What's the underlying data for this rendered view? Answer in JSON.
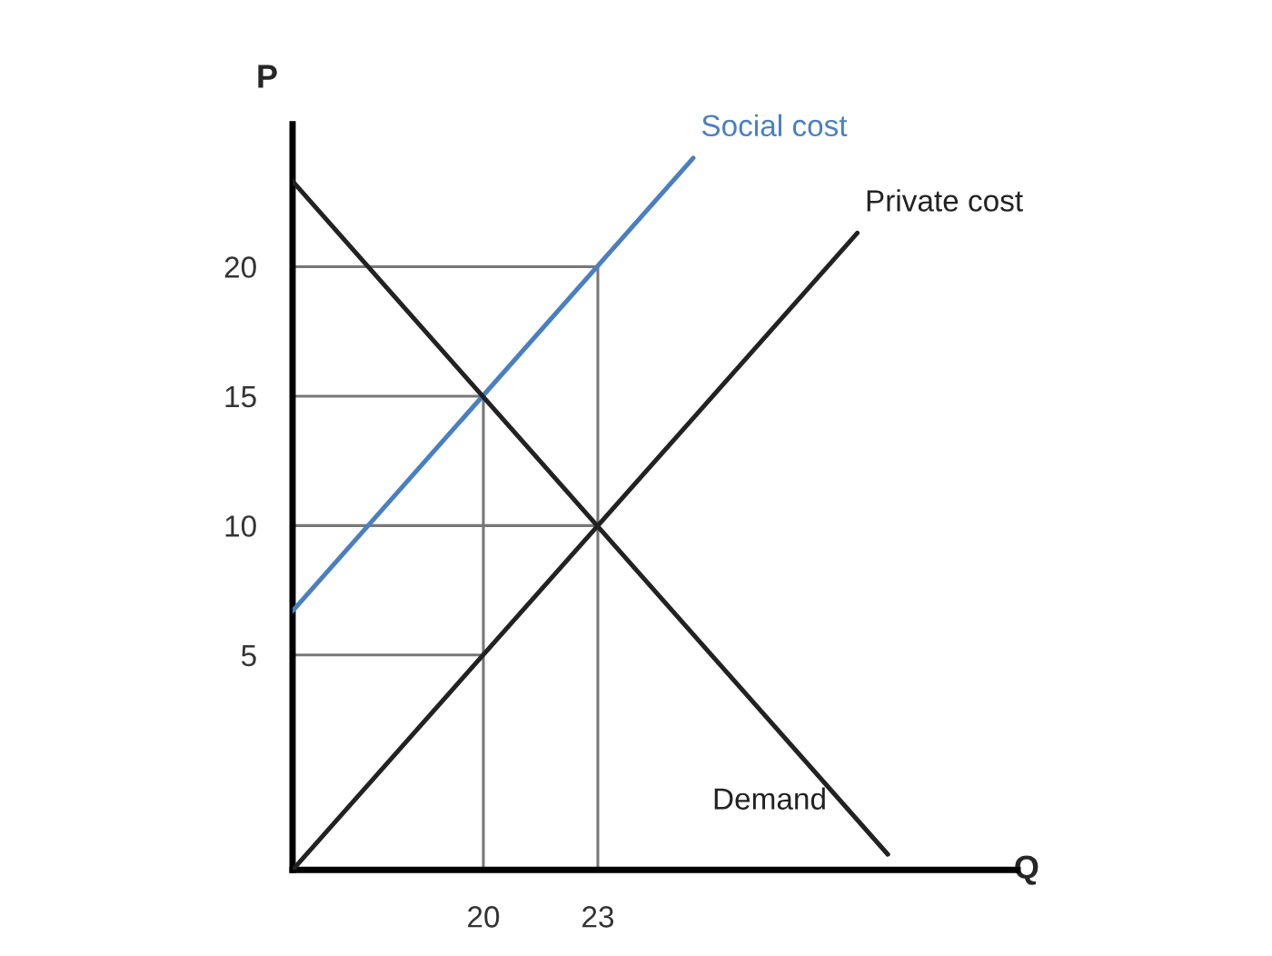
{
  "chart_data": {
    "type": "line",
    "xlabel": "Q",
    "ylabel": "P",
    "xlim": [
      15,
      34
    ],
    "ylim": [
      -3.3,
      25.5
    ],
    "xticks": [
      20,
      23
    ],
    "yticks": [
      5,
      10,
      15,
      20
    ],
    "grid": false,
    "legend": false,
    "marker": "none",
    "line_style": "solid",
    "series": [
      {
        "name": "Social cost",
        "color": "#4a7fc0",
        "x": [
          15,
          25.5
        ],
        "values": [
          6.7,
          24.2
        ]
      },
      {
        "name": "Private cost",
        "color": "#222222",
        "x": [
          15,
          29.8
        ],
        "values": [
          -3.3,
          21.3
        ]
      },
      {
        "name": "Demand",
        "color": "#222222",
        "x": [
          15,
          30.6
        ],
        "values": [
          23.3,
          -2.7
        ]
      },
      {
        "color": "#777777",
        "x": [
          15,
          23
        ],
        "values": [
          20,
          20
        ]
      },
      {
        "color": "#777777",
        "x": [
          15,
          20
        ],
        "values": [
          15,
          15
        ]
      },
      {
        "color": "#777777",
        "x": [
          15,
          23
        ],
        "values": [
          10,
          10
        ]
      },
      {
        "color": "#777777",
        "x": [
          15,
          20
        ],
        "values": [
          5,
          5
        ]
      },
      {
        "color": "#777777",
        "x": [
          20,
          20
        ],
        "values": [
          -3.3,
          15
        ]
      },
      {
        "color": "#777777",
        "x": [
          23,
          23
        ],
        "values": [
          -3.3,
          20
        ]
      }
    ]
  }
}
